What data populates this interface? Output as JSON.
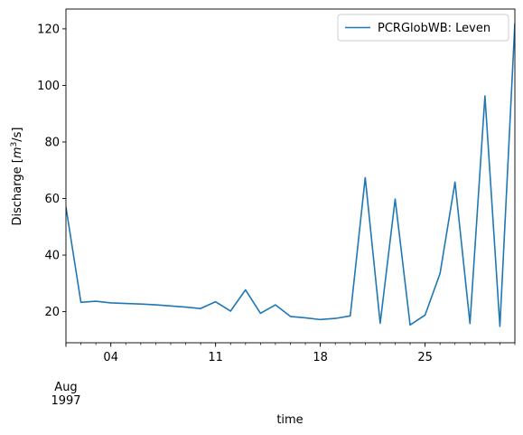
{
  "chart_data": {
    "type": "line",
    "xlabel": "time",
    "ylabel_main": "Discharge [",
    "ylabel_m": "m",
    "ylabel_exp": "3",
    "ylabel_rest": "/s]",
    "ylim": [
      9,
      127
    ],
    "xlim": [
      "1997-08-01",
      "1997-08-31"
    ],
    "yticks": [
      20,
      40,
      60,
      80,
      100,
      120
    ],
    "ytick_labels": [
      "20",
      "40",
      "60",
      "80",
      "100",
      "120"
    ],
    "xticks_major": [
      "1997-08-04",
      "1997-08-11",
      "1997-08-18",
      "1997-08-25"
    ],
    "xtick_labels": [
      "04",
      "11",
      "18",
      "25"
    ],
    "xtick_label_month": "Aug",
    "xtick_label_year": "1997",
    "legend_position": "top-right",
    "grid": false,
    "series": [
      {
        "name": "PCRGlobWB: Leven",
        "color": "#1f77b4",
        "x": [
          "1997-08-01",
          "1997-08-02",
          "1997-08-03",
          "1997-08-04",
          "1997-08-05",
          "1997-08-06",
          "1997-08-07",
          "1997-08-08",
          "1997-08-09",
          "1997-08-10",
          "1997-08-11",
          "1997-08-12",
          "1997-08-13",
          "1997-08-14",
          "1997-08-15",
          "1997-08-16",
          "1997-08-17",
          "1997-08-18",
          "1997-08-19",
          "1997-08-20",
          "1997-08-21",
          "1997-08-22",
          "1997-08-23",
          "1997-08-24",
          "1997-08-25",
          "1997-08-26",
          "1997-08-27",
          "1997-08-28",
          "1997-08-29",
          "1997-08-30",
          "1997-08-31"
        ],
        "values": [
          57.0,
          23.3,
          23.7,
          23.1,
          22.9,
          22.7,
          22.4,
          22.0,
          21.6,
          21.1,
          23.5,
          20.2,
          27.7,
          19.4,
          22.4,
          18.3,
          17.8,
          17.2,
          17.6,
          18.5,
          67.4,
          15.9,
          59.8,
          15.3,
          18.8,
          33.5,
          65.8,
          15.8,
          96.3,
          14.8,
          122.0
        ]
      }
    ]
  }
}
